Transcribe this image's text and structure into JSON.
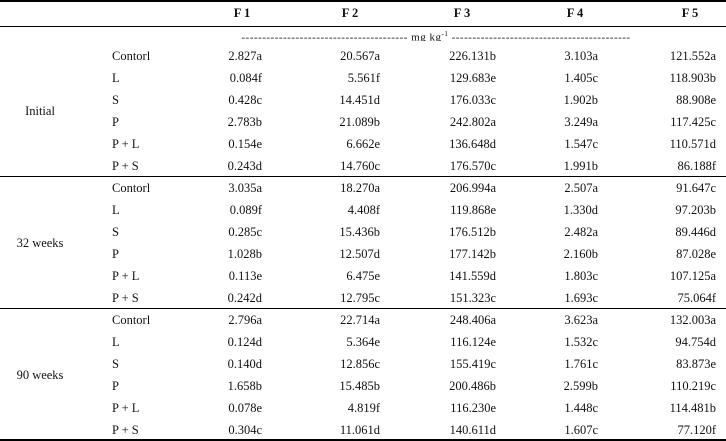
{
  "header": {
    "columns": [
      "F 1",
      "F 2",
      "F 3",
      "F 4",
      "F 5"
    ],
    "unit_prefix": "----------------------------------------  mg  kg",
    "unit_exp": "-1",
    "unit_suffix": "  -------------------------------------------"
  },
  "groups": [
    {
      "label": "Initial",
      "rows": [
        {
          "trt": "Contorl",
          "f1": "2.827a",
          "f2": "20.567a",
          "f3": "226.131b",
          "f4": "3.103a",
          "f5": "121.552a"
        },
        {
          "trt": "L",
          "f1": "0.084f",
          "f2": "5.561f",
          "f3": "129.683e",
          "f4": "1.405c",
          "f5": "118.903b"
        },
        {
          "trt": "S",
          "f1": "0.428c",
          "f2": "14.451d",
          "f3": "176.033c",
          "f4": "1.902b",
          "f5": "88.908e"
        },
        {
          "trt": "P",
          "f1": "2.783b",
          "f2": "21.089b",
          "f3": "242.802a",
          "f4": "3.249a",
          "f5": "117.425c"
        },
        {
          "trt": "P  +  L",
          "f1": "0.154e",
          "f2": "6.662e",
          "f3": "136.648d",
          "f4": "1.547c",
          "f5": "110.571d"
        },
        {
          "trt": "P  +  S",
          "f1": "0.243d",
          "f2": "14.760c",
          "f3": "176.570c",
          "f4": "1.991b",
          "f5": "86.188f"
        }
      ]
    },
    {
      "label": "32  weeks",
      "rows": [
        {
          "trt": "Contorl",
          "f1": "3.035a",
          "f2": "18.270a",
          "f3": "206.994a",
          "f4": "2.507a",
          "f5": "91.647c"
        },
        {
          "trt": "L",
          "f1": "0.089f",
          "f2": "4.408f",
          "f3": "119.868e",
          "f4": "1.330d",
          "f5": "97.203b"
        },
        {
          "trt": "S",
          "f1": "0.285c",
          "f2": "15.436b",
          "f3": "176.512b",
          "f4": "2.482a",
          "f5": "89.446d"
        },
        {
          "trt": "P",
          "f1": "1.028b",
          "f2": "12.507d",
          "f3": "177.142b",
          "f4": "2.160b",
          "f5": "87.028e"
        },
        {
          "trt": "P  +  L",
          "f1": "0.113e",
          "f2": "6.475e",
          "f3": "141.559d",
          "f4": "1.803c",
          "f5": "107.125a"
        },
        {
          "trt": "P  +  S",
          "f1": "0.242d",
          "f2": "12.795c",
          "f3": "151.323c",
          "f4": "1.693c",
          "f5": "75.064f"
        }
      ]
    },
    {
      "label": "90  weeks",
      "rows": [
        {
          "trt": "Contorl",
          "f1": "2.796a",
          "f2": "22.714a",
          "f3": "248.406a",
          "f4": "3.623a",
          "f5": "132.003a"
        },
        {
          "trt": "L",
          "f1": "0.124d",
          "f2": "5.364e",
          "f3": "116.124e",
          "f4": "1.532c",
          "f5": "94.754d"
        },
        {
          "trt": "S",
          "f1": "0.140d",
          "f2": "12.856c",
          "f3": "155.419c",
          "f4": "1.761c",
          "f5": "83.873e"
        },
        {
          "trt": "P",
          "f1": "1.658b",
          "f2": "15.485b",
          "f3": "200.486b",
          "f4": "2.599b",
          "f5": "110.219c"
        },
        {
          "trt": "P  +  L",
          "f1": "0.078e",
          "f2": "4.819f",
          "f3": "116.230e",
          "f4": "1.448c",
          "f5": "114.481b"
        },
        {
          "trt": "P  +  S",
          "f1": "0.304c",
          "f2": "11.061d",
          "f3": "140.611d",
          "f4": "1.607c",
          "f5": "77.120f"
        }
      ]
    }
  ]
}
